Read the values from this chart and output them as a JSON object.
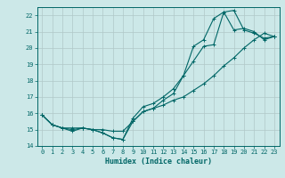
{
  "xlabel": "Humidex (Indice chaleur)",
  "xlim": [
    -0.5,
    23.5
  ],
  "ylim": [
    14,
    22.5
  ],
  "yticks": [
    14,
    15,
    16,
    17,
    18,
    19,
    20,
    21,
    22
  ],
  "xticks": [
    0,
    1,
    2,
    3,
    4,
    5,
    6,
    7,
    8,
    9,
    10,
    11,
    12,
    13,
    14,
    15,
    16,
    17,
    18,
    19,
    20,
    21,
    22,
    23
  ],
  "bg_color": "#cce8e8",
  "grid_color": "#b0c8c8",
  "line_color": "#006666",
  "line1_y": [
    15.9,
    15.3,
    15.1,
    14.9,
    15.1,
    15.0,
    14.8,
    14.5,
    14.4,
    15.7,
    16.4,
    16.6,
    17.0,
    17.5,
    18.3,
    19.2,
    20.1,
    20.2,
    22.2,
    22.3,
    21.1,
    20.9,
    20.6,
    20.7
  ],
  "line2_y": [
    15.9,
    15.3,
    15.1,
    15.1,
    15.1,
    15.0,
    15.0,
    14.9,
    14.9,
    15.5,
    16.1,
    16.3,
    16.5,
    16.8,
    17.0,
    17.4,
    17.8,
    18.3,
    18.9,
    19.4,
    20.0,
    20.5,
    20.9,
    20.7
  ],
  "line3_y": [
    15.9,
    15.3,
    15.1,
    15.0,
    15.1,
    15.0,
    14.8,
    14.5,
    14.4,
    15.5,
    16.1,
    16.3,
    16.8,
    17.2,
    18.3,
    20.1,
    20.5,
    21.8,
    22.2,
    21.1,
    21.2,
    21.0,
    20.5,
    20.7
  ]
}
